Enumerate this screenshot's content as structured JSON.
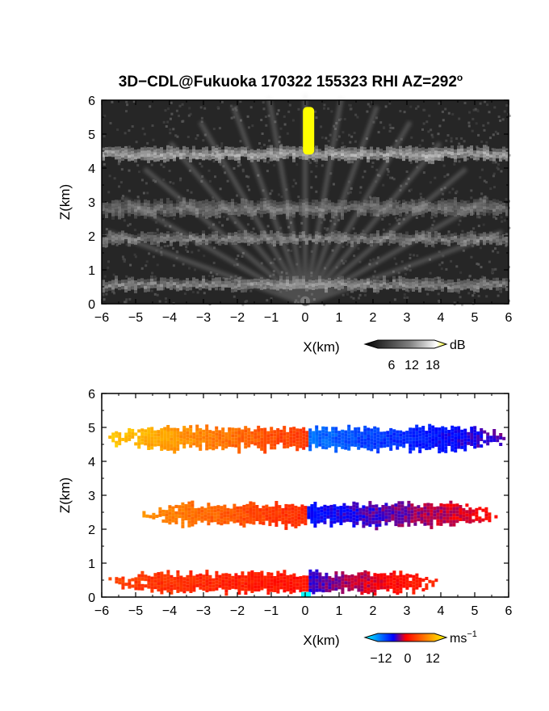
{
  "title": "3D−CDL@Fukuoka 170322 155323 RHI AZ=292",
  "title_degree": "o",
  "chart_data": [
    {
      "type": "heatmap",
      "name_of_field": "backscatter",
      "xlabel": "X(km)",
      "ylabel": "Z(km)",
      "xlim": [
        -6,
        6
      ],
      "ylim": [
        0,
        6
      ],
      "xticks": [
        "−6",
        "−5",
        "−4",
        "−3",
        "−2",
        "−1",
        "0",
        "1",
        "2",
        "3",
        "4",
        "5",
        "6"
      ],
      "yticks": [
        "0",
        "1",
        "2",
        "3",
        "4",
        "5",
        "6"
      ],
      "colorbar": {
        "unit": "dB",
        "ticks": [
          "6",
          "12",
          "18"
        ],
        "range": [
          0,
          21
        ],
        "colormap": "gray-to-yellow"
      },
      "layers": [
        {
          "z_center": 4.45,
          "thickness": 0.35,
          "x_extent": [
            -6,
            6
          ],
          "level_db": 13
        },
        {
          "z_center": 2.85,
          "thickness": 0.45,
          "x_extent": [
            -6,
            6
          ],
          "level_db": 8
        },
        {
          "z_center": 1.95,
          "thickness": 0.3,
          "x_extent": [
            -6,
            6
          ],
          "level_db": 9
        },
        {
          "z_center": 0.6,
          "thickness": 0.3,
          "x_extent": [
            -6,
            6
          ],
          "level_db": 10
        }
      ],
      "hotspot": {
        "x": 0.1,
        "z_range": [
          4.4,
          5.8
        ],
        "level_db": 20
      }
    },
    {
      "type": "heatmap",
      "name_of_field": "radial_velocity",
      "xlabel": "X(km)",
      "ylabel": "Z(km)",
      "xlim": [
        -6,
        6
      ],
      "ylim": [
        0,
        6
      ],
      "xticks": [
        "−6",
        "−5",
        "−4",
        "−3",
        "−2",
        "−1",
        "0",
        "1",
        "2",
        "3",
        "4",
        "5",
        "6"
      ],
      "yticks": [
        "0",
        "1",
        "2",
        "3",
        "4",
        "5",
        "6"
      ],
      "colorbar": {
        "unit": "ms",
        "unit_exp": "−1",
        "ticks": [
          "−12",
          "0",
          "12"
        ],
        "range": [
          -15,
          15
        ],
        "colormap": "cyan-blue-red-yellow"
      },
      "layers": [
        {
          "z_center": 4.7,
          "thickness": 0.5,
          "x_extent": [
            -5.9,
            5.9
          ],
          "v_left": 10,
          "v_right": -10
        },
        {
          "z_center": 2.45,
          "thickness": 0.5,
          "x_extent": [
            -4.8,
            5.6
          ],
          "v_left": 7,
          "v_right": -6
        },
        {
          "z_center": 0.45,
          "thickness": 0.45,
          "x_extent": [
            -5.8,
            3.9
          ],
          "v_left": 3,
          "v_right": -4
        }
      ]
    }
  ]
}
